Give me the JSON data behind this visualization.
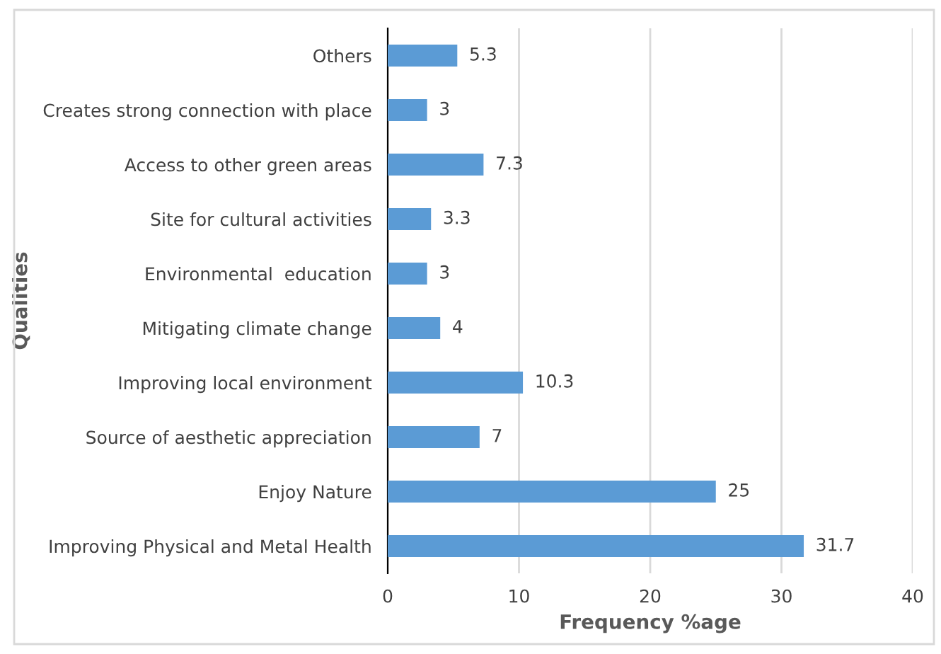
{
  "chart_data": {
    "type": "bar",
    "orientation": "horizontal",
    "categories": [
      "Others",
      "Creates strong connection with place",
      "Access to other green areas",
      "Site for cultural activities",
      "Environmental  education",
      "Mitigating climate change",
      "Improving local environment",
      "Source of aesthetic appreciation",
      "Enjoy Nature",
      "Improving Physical and Metal Health"
    ],
    "values": [
      5.3,
      3,
      7.3,
      3.3,
      3,
      4,
      10.3,
      7,
      25,
      31.7
    ],
    "color": "#5b9bd5",
    "xlim": [
      0,
      40
    ],
    "xticks": [
      0,
      10,
      20,
      30,
      40
    ],
    "xlabel": "Frequency %age",
    "ylabel": "Qualities",
    "grid": "x",
    "data_labels": true
  }
}
